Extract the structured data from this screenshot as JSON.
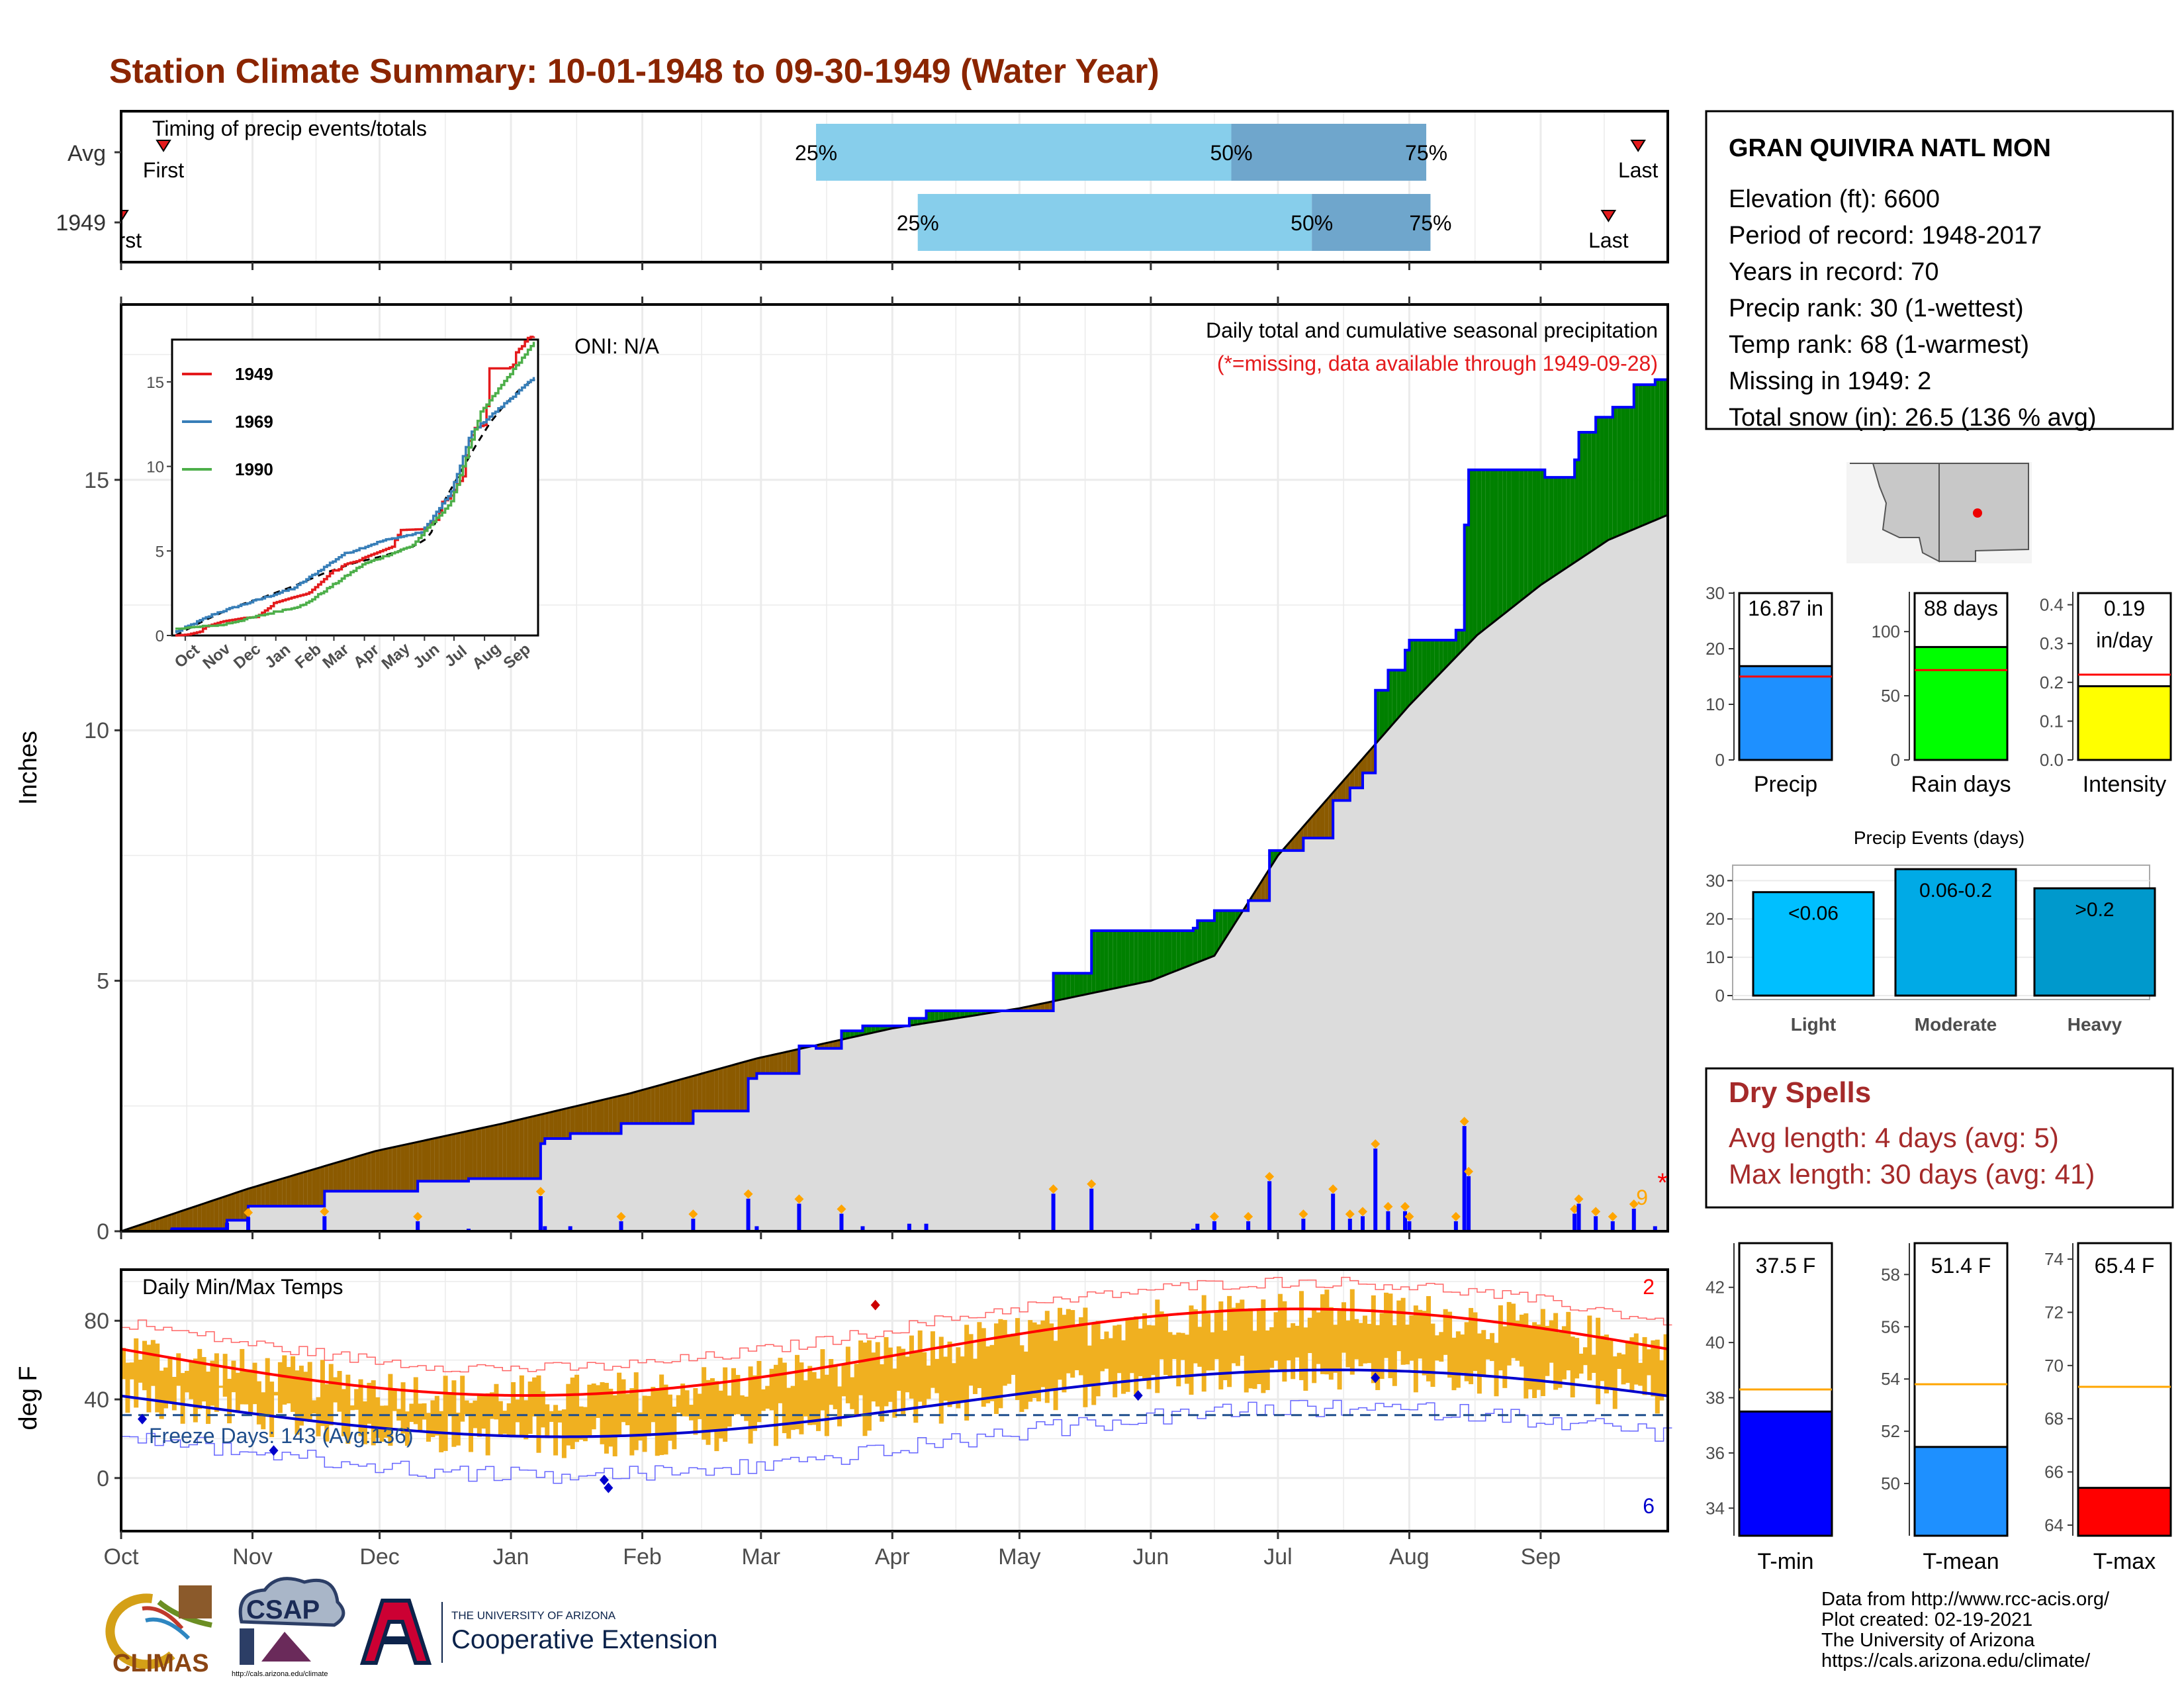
{
  "title": "Station Climate Summary: 10-01-1948 to 09-30-1949 (Water Year)",
  "months": [
    "Oct",
    "Nov",
    "Dec",
    "Jan",
    "Feb",
    "Mar",
    "Apr",
    "May",
    "Jun",
    "Jul",
    "Aug",
    "Sep"
  ],
  "timing": {
    "label": "Timing of precip events/totals",
    "rows": [
      {
        "name": "Avg",
        "first_label": "First",
        "first_day": 10,
        "last_label": "Last",
        "last_day": 358,
        "p25_label": "25%",
        "p25_day": 164,
        "p50_label": "50%",
        "p50_day": 262,
        "p75_label": "75%",
        "p75_day": 308
      },
      {
        "name": "1949",
        "first_label": "First",
        "first_day": 0,
        "last_label": "Last",
        "last_day": 351,
        "p25_label": "25%",
        "p25_day": 188,
        "p50_label": "50%",
        "p50_day": 281,
        "p75_label": "75%",
        "p75_day": 309
      }
    ],
    "colors": {
      "iqr_low": "#87ceeb",
      "iqr_high": "#6fa6cc",
      "marker": "#e41a1c"
    }
  },
  "precip_panel": {
    "ylabel": "Inches",
    "oni": "ONI: N/A",
    "subtitle": "Daily total and cumulative seasonal precipitation",
    "missing_note": "(*=missing, data available through 1949-09-28)",
    "missing_count": "9",
    "missing_symbol": "*",
    "yticks": [
      0,
      5,
      10,
      15
    ],
    "ylim": [
      0,
      18.5
    ],
    "colors": {
      "avg_fill": "#dcdcdc",
      "above": "#008000",
      "below": "#8b5a00",
      "obs_line": "#0000ff",
      "daily_bar": "#0000ff",
      "marker": "#ffa500"
    }
  },
  "inset": {
    "yticks": [
      0,
      5,
      10,
      15
    ],
    "ylim": [
      0,
      17.5
    ],
    "legend": [
      {
        "name": "1949",
        "color": "#e41a1c"
      },
      {
        "name": "1969",
        "color": "#377eb8"
      },
      {
        "name": "1990",
        "color": "#4daf4a"
      }
    ]
  },
  "temp_panel": {
    "label": "Daily Min/Max Temps",
    "ylabel": "deg F",
    "freeze_label": "Freeze Days: 143 (Avg:136)",
    "max_record_count": "2",
    "min_record_count": "6",
    "yticks": [
      0,
      40,
      80
    ],
    "ylim": [
      -27,
      106
    ],
    "freeze_line": 32,
    "colors": {
      "range_bar": "#f0b020",
      "max_avg": "#ff0000",
      "min_avg": "#0000cd",
      "max_record": "#ff6666",
      "min_record": "#6666ff",
      "freeze": "#1f4e8c"
    }
  },
  "station": {
    "name": "GRAN QUIVIRA NATL MON",
    "lines": [
      "Elevation (ft): 6600",
      "Period of record: 1948-2017",
      "Years in record: 70",
      "Precip rank: 30 (1-wettest)",
      "Temp rank: 68 (1-warmest)",
      "Missing in 1949: 2",
      "Total snow (in): 26.5 (136 % avg)"
    ]
  },
  "summary_bars": [
    {
      "name": "Precip",
      "label_lines": [
        "16.87 in"
      ],
      "value": 16.87,
      "avg": 15.0,
      "ymax": 30,
      "yticks": [
        0,
        10,
        20,
        30
      ],
      "color": "#1e90ff"
    },
    {
      "name": "Rain days",
      "label_lines": [
        "88 days"
      ],
      "value": 88,
      "avg": 70,
      "ymax": 130,
      "yticks": [
        0,
        50,
        100
      ],
      "color": "#00ff00"
    },
    {
      "name": "Intensity",
      "label_lines": [
        "0.19",
        "in/day"
      ],
      "value": 0.19,
      "avg": 0.22,
      "ymax": 0.43,
      "yticks": [
        0.0,
        0.1,
        0.2,
        0.3,
        0.4
      ],
      "color": "#ffff00"
    }
  ],
  "precip_events": {
    "title": "Precip Events (days)",
    "yticks": [
      0,
      10,
      20,
      30
    ],
    "ymax": 33,
    "bars": [
      {
        "name": "Light",
        "label": "<0.06",
        "value": 27,
        "color": "#00bfff"
      },
      {
        "name": "Moderate",
        "label": "0.06-0.2",
        "value": 33,
        "color": "#00aae6"
      },
      {
        "name": "Heavy",
        "label": ">0.2",
        "value": 28,
        "color": "#0099cc"
      }
    ]
  },
  "dry_spells": {
    "title": "Dry Spells",
    "lines": [
      "Avg length: 4 days (avg: 5)",
      "Max length: 30 days (avg: 41)"
    ],
    "color": "#a52a2a"
  },
  "temp_bars": [
    {
      "name": "T-min",
      "label": "37.5 F",
      "value": 37.5,
      "avg": 38.3,
      "ylim": [
        33,
        43.6
      ],
      "yticks": [
        34,
        36,
        38,
        40,
        42
      ],
      "color": "#0000ff"
    },
    {
      "name": "T-mean",
      "label": "51.4 F",
      "value": 51.4,
      "avg": 53.8,
      "ylim": [
        48,
        59.2
      ],
      "yticks": [
        50,
        52,
        54,
        56,
        58
      ],
      "color": "#1e90ff"
    },
    {
      "name": "T-max",
      "label": "65.4 F",
      "value": 65.4,
      "avg": 69.2,
      "ylim": [
        63.6,
        74.6
      ],
      "yticks": [
        64,
        66,
        68,
        70,
        72,
        74
      ],
      "color": "#ff0000"
    }
  ],
  "footer": {
    "lines": [
      "Data from http://www.rcc-acis.org/",
      "Plot created: 02-19-2021",
      "The University of Arizona",
      "https://cals.arizona.edu/climate/"
    ],
    "logos": {
      "climas": "CLIMAS",
      "csap": "CSAP",
      "csap_url": "http://cals.arizona.edu/climate",
      "ua_small": "THE UNIVERSITY OF ARIZONA",
      "ua_big": "Cooperative Extension"
    }
  }
}
